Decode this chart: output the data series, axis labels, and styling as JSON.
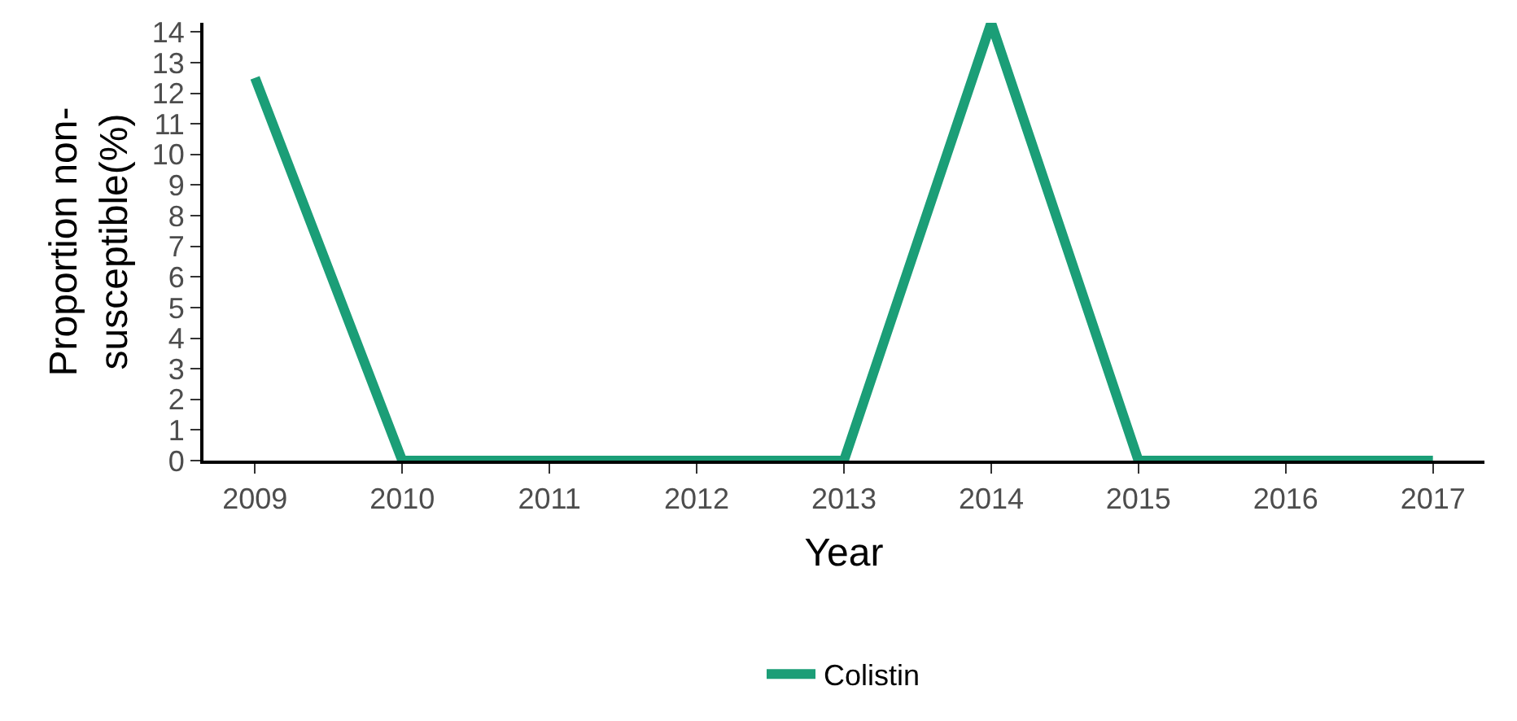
{
  "chart_data": {
    "type": "line",
    "xlabel": "Year",
    "ylabel": "Proportion non-\nsusceptible(%)",
    "categories": [
      "2009",
      "2010",
      "2011",
      "2012",
      "2013",
      "2014",
      "2015",
      "2016",
      "2017"
    ],
    "series": [
      {
        "name": "Colistin",
        "color": "#1b9e77",
        "values": [
          12.5,
          0,
          0,
          0,
          0,
          14.3,
          0,
          0,
          0
        ]
      }
    ],
    "ylim": [
      0,
      14.3
    ],
    "yticks": [
      0,
      1,
      2,
      3,
      4,
      5,
      6,
      7,
      8,
      9,
      10,
      11,
      12,
      13,
      14
    ],
    "legend": "bottom",
    "marker": "none",
    "line_style": "solid"
  }
}
